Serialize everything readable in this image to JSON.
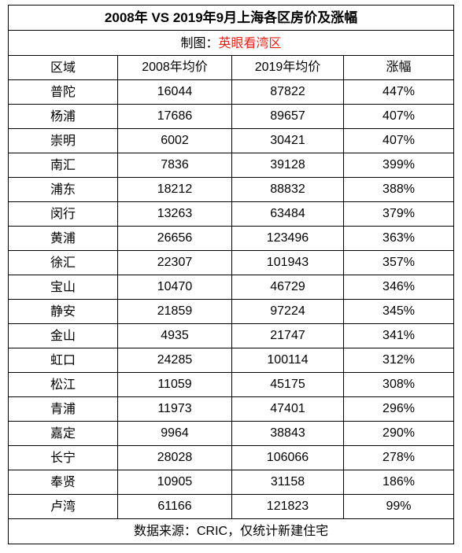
{
  "title": "2008年 VS 2019年9月上海各区房价及涨幅",
  "maker_label": "制图：",
  "maker_name": "英眼看湾区",
  "accent_color": "#e0231b",
  "headers": [
    "区域",
    "2008年均价",
    "2019年均价",
    "涨幅"
  ],
  "rows": [
    {
      "region": "普陀",
      "p2008": "16044",
      "p2019": "87822",
      "growth": "447%"
    },
    {
      "region": "杨浦",
      "p2008": "17686",
      "p2019": "89657",
      "growth": "407%"
    },
    {
      "region": "崇明",
      "p2008": "6002",
      "p2019": "30421",
      "growth": "407%"
    },
    {
      "region": "南汇",
      "p2008": "7836",
      "p2019": "39128",
      "growth": "399%"
    },
    {
      "region": "浦东",
      "p2008": "18212",
      "p2019": "88832",
      "growth": "388%"
    },
    {
      "region": "闵行",
      "p2008": "13263",
      "p2019": "63484",
      "growth": "379%"
    },
    {
      "region": "黄浦",
      "p2008": "26656",
      "p2019": "123496",
      "growth": "363%"
    },
    {
      "region": "徐汇",
      "p2008": "22307",
      "p2019": "101943",
      "growth": "357%"
    },
    {
      "region": "宝山",
      "p2008": "10470",
      "p2019": "46729",
      "growth": "346%"
    },
    {
      "region": "静安",
      "p2008": "21859",
      "p2019": "97224",
      "growth": "345%"
    },
    {
      "region": "金山",
      "p2008": "4935",
      "p2019": "21747",
      "growth": "341%"
    },
    {
      "region": "虹口",
      "p2008": "24285",
      "p2019": "100114",
      "growth": "312%"
    },
    {
      "region": "松江",
      "p2008": "11059",
      "p2019": "45175",
      "growth": "308%"
    },
    {
      "region": "青浦",
      "p2008": "11973",
      "p2019": "47401",
      "growth": "296%"
    },
    {
      "region": "嘉定",
      "p2008": "9964",
      "p2019": "38843",
      "growth": "290%"
    },
    {
      "region": "长宁",
      "p2008": "28028",
      "p2019": "106066",
      "growth": "278%"
    },
    {
      "region": "奉贤",
      "p2008": "10905",
      "p2019": "31158",
      "growth": "186%"
    },
    {
      "region": "卢湾",
      "p2008": "61166",
      "p2019": "121823",
      "growth": "99%"
    }
  ],
  "source": "数据来源：CRIC，仅统计新建住宅"
}
